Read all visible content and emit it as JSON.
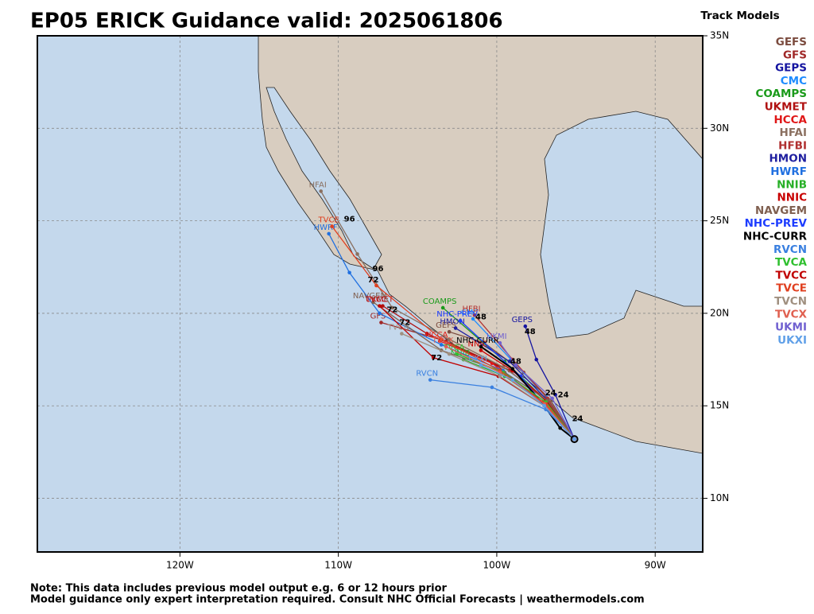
{
  "title": "EP05 ERICK Guidance valid: 2025061806",
  "legend_title": "Track Models",
  "notes": [
    "Note: This data includes previous model output e.g. 6 or 12 hours prior",
    "Model guidance only expert interpretation required. Consult NHC Official Forecasts | weathermodels.com"
  ],
  "map": {
    "lonlim": [
      -129,
      -87
    ],
    "latlim": [
      7.1,
      35
    ],
    "lonticks": [
      {
        "value": -120,
        "label": "120W"
      },
      {
        "value": -110,
        "label": "110W"
      },
      {
        "value": -100,
        "label": "100W"
      },
      {
        "value": -90,
        "label": "90W"
      }
    ],
    "latticks": [
      {
        "value": 35,
        "label": "35N"
      },
      {
        "value": 30,
        "label": "30N"
      },
      {
        "value": 25,
        "label": "25N"
      },
      {
        "value": 20,
        "label": "20N"
      },
      {
        "value": 15,
        "label": "15N"
      },
      {
        "value": 10,
        "label": "10N"
      }
    ],
    "grid": true,
    "tracks": [
      {
        "name": "GEFS",
        "color": "#7b4b3e",
        "lon": [
          -95.1,
          -96.6,
          -98.3,
          -100.8,
          -103.0
        ],
        "lat": [
          13.2,
          15.3,
          16.8,
          18.4,
          19.0
        ]
      },
      {
        "name": "GFS",
        "color": "#a02828",
        "lon": [
          -95.1,
          -96.8,
          -99.2,
          -103.2,
          -107.3
        ],
        "lat": [
          13.2,
          15.2,
          16.9,
          18.5,
          19.5
        ]
      },
      {
        "name": "GEPS",
        "color": "#1414a0",
        "lon": [
          -95.1,
          -96.3,
          -97.5,
          -98.2
        ],
        "lat": [
          13.2,
          15.6,
          17.5,
          19.3
        ]
      },
      {
        "name": "CMC",
        "color": "#1e8cff",
        "lon": [
          -95.1,
          -96.9,
          -99.1,
          -101.5
        ],
        "lat": [
          13.2,
          15.5,
          17.5,
          19.7
        ]
      },
      {
        "name": "COAMPS",
        "color": "#1a9a1a",
        "lon": [
          -95.1,
          -96.9,
          -99.5,
          -103.4
        ],
        "lat": [
          13.2,
          15.3,
          17.4,
          20.3
        ]
      },
      {
        "name": "UKMET",
        "color": "#b01010",
        "lon": [
          -95.1,
          -97.0,
          -100.0,
          -104.4,
          -107.2
        ],
        "lat": [
          13.2,
          15.0,
          17.2,
          18.9,
          20.4
        ]
      },
      {
        "name": "HCCA",
        "color": "#e01818",
        "lon": [
          -95.1,
          -97.1,
          -100.3,
          -103.6
        ],
        "lat": [
          13.2,
          15.2,
          17.3,
          18.5
        ]
      },
      {
        "name": "HFAI",
        "color": "#8b7060",
        "lon": [
          -95.1,
          -96.7,
          -99.6,
          -103.0,
          -106.6,
          -108.8,
          -111.1
        ],
        "lat": [
          13.2,
          15.3,
          17.1,
          18.6,
          20.3,
          23.2,
          26.6
        ]
      },
      {
        "name": "HFBI",
        "color": "#b03030",
        "lon": [
          -95.1,
          -96.8,
          -99.0,
          -101.4
        ],
        "lat": [
          13.2,
          15.4,
          17.5,
          19.9
        ]
      },
      {
        "name": "HMON",
        "color": "#2020a0",
        "lon": [
          -95.1,
          -96.8,
          -99.2,
          -102.6
        ],
        "lat": [
          13.2,
          15.3,
          17.4,
          19.2
        ]
      },
      {
        "name": "HWRF",
        "color": "#2070e0",
        "lon": [
          -95.1,
          -96.9,
          -99.6,
          -103.5,
          -107.4,
          -109.3,
          -110.6
        ],
        "lat": [
          13.2,
          15.0,
          16.9,
          18.3,
          20.0,
          22.2,
          24.3
        ]
      },
      {
        "name": "NNIB",
        "color": "#28b028",
        "lon": [
          -95.1,
          -97.0,
          -99.5,
          -102.1
        ],
        "lat": [
          13.2,
          15.1,
          16.6,
          17.5
        ]
      },
      {
        "name": "NNIC",
        "color": "#c80000",
        "lon": [
          -95.1,
          -96.9,
          -99.0,
          -101.0
        ],
        "lat": [
          13.2,
          15.3,
          16.9,
          18.0
        ]
      },
      {
        "name": "NAVGEM",
        "color": "#806050",
        "lon": [
          -95.1,
          -96.8,
          -99.5,
          -103.5,
          -107.8
        ],
        "lat": [
          13.2,
          15.3,
          16.8,
          18.0,
          20.6
        ]
      },
      {
        "name": "NHC-PREV",
        "color": "#1c3cff",
        "lon": [
          -95.1,
          -96.6,
          -98.5,
          -102.3
        ],
        "lat": [
          13.2,
          14.6,
          16.6,
          19.6
        ]
      },
      {
        "name": "NHC-CURR",
        "color": "#000000",
        "lon": [
          -95.1,
          -96.0,
          -97.0,
          -99.0,
          -101.0
        ],
        "lat": [
          13.2,
          13.8,
          15.0,
          17.0,
          18.2
        ]
      },
      {
        "name": "RVCN",
        "color": "#3a80e0",
        "lon": [
          -95.1,
          -96.9,
          -100.3,
          -104.2
        ],
        "lat": [
          13.2,
          14.8,
          16.0,
          16.4
        ]
      },
      {
        "name": "TVCA",
        "color": "#30c030",
        "lon": [
          -95.1,
          -96.9,
          -99.6,
          -102.5
        ],
        "lat": [
          13.2,
          15.2,
          16.8,
          17.8
        ]
      },
      {
        "name": "TVCC",
        "color": "#c00000",
        "lon": [
          -95.1,
          -97.0,
          -99.9,
          -104.0,
          -107.4
        ],
        "lat": [
          13.2,
          15.0,
          16.6,
          17.6,
          20.4
        ]
      },
      {
        "name": "TVCE",
        "color": "#e04020",
        "lon": [
          -95.1,
          -96.9,
          -99.8,
          -103.5,
          -107.6,
          -110.4
        ],
        "lat": [
          13.2,
          15.1,
          16.9,
          18.6,
          21.5,
          24.7
        ]
      },
      {
        "name": "TVCN",
        "color": "#a09080",
        "lon": [
          -95.1,
          -97.0,
          -99.8,
          -103.0,
          -106.0
        ],
        "lat": [
          13.2,
          15.0,
          16.6,
          17.8,
          18.9
        ]
      },
      {
        "name": "TVCX",
        "color": "#e06050",
        "lon": [
          -95.1,
          -97.0,
          -99.8,
          -103.2
        ],
        "lat": [
          13.2,
          15.1,
          16.8,
          18.2
        ]
      },
      {
        "name": "UKMI",
        "color": "#7060d0",
        "lon": [
          -95.1,
          -96.5,
          -98.8,
          -99.8
        ],
        "lat": [
          13.2,
          15.4,
          17.2,
          18.4
        ]
      },
      {
        "name": "UKXI",
        "color": "#60a0e8",
        "lon": [
          -95.1,
          -97.0,
          -99.0,
          -101.0
        ],
        "lat": [
          13.2,
          15.0,
          16.4,
          17.2
        ]
      }
    ],
    "hour_labels": [
      {
        "text": "24",
        "lon": -94.9,
        "lat": 14.3
      },
      {
        "text": "24",
        "lon": -96.6,
        "lat": 15.7
      },
      {
        "text": "24",
        "lon": -95.8,
        "lat": 15.6
      },
      {
        "text": "48",
        "lon": -98.8,
        "lat": 17.4
      },
      {
        "text": "48",
        "lon": -101.0,
        "lat": 19.8
      },
      {
        "text": "48",
        "lon": -97.9,
        "lat": 19.0
      },
      {
        "text": "72",
        "lon": -106.6,
        "lat": 20.2
      },
      {
        "text": "72",
        "lon": -103.8,
        "lat": 17.6
      },
      {
        "text": "72",
        "lon": -105.8,
        "lat": 19.5
      },
      {
        "text": "72",
        "lon": -107.8,
        "lat": 21.8
      },
      {
        "text": "96",
        "lon": -109.3,
        "lat": 25.1
      },
      {
        "text": "96",
        "lon": -107.5,
        "lat": 22.4
      }
    ]
  }
}
